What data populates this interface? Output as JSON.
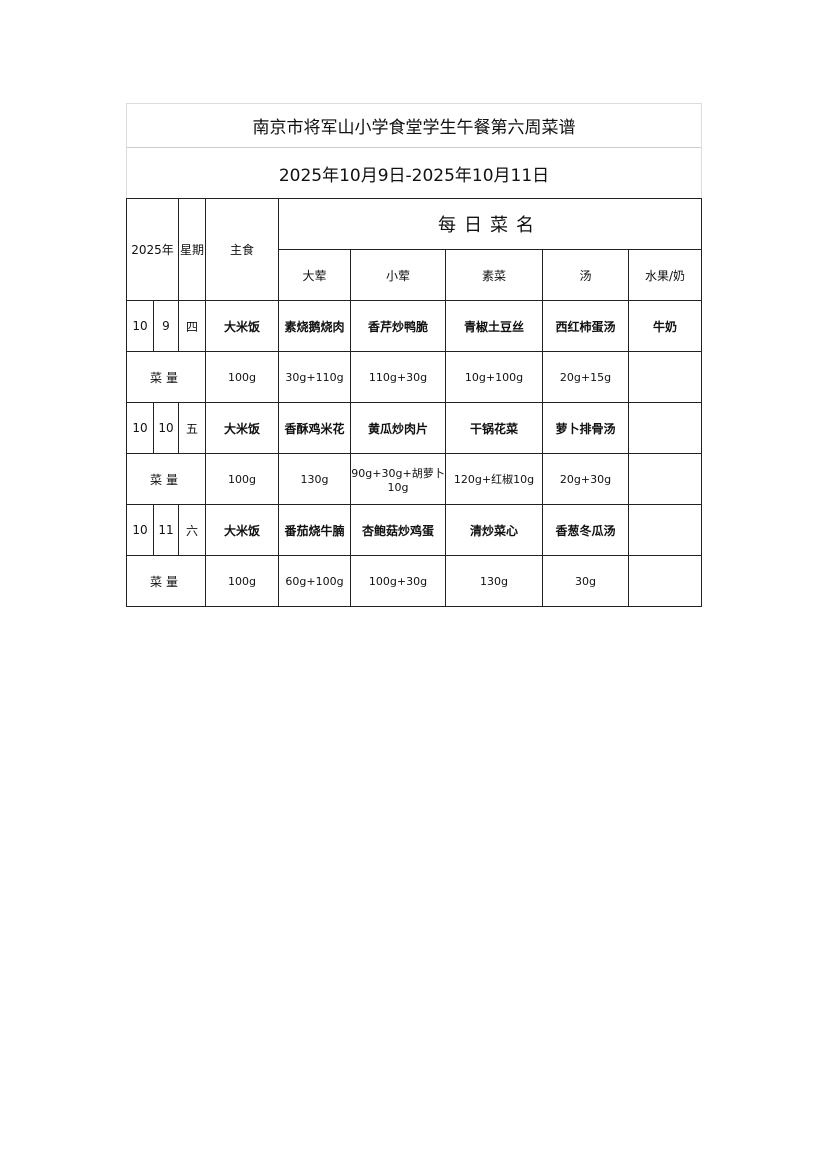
{
  "title": "南京市将军山小学食堂学生午餐第六周菜谱",
  "date_range": "2025年10月9日-2025年10月11日",
  "headers": {
    "year": "2025年",
    "weekday": "星期",
    "staple": "主食",
    "daily_dishes": "每日菜名",
    "main": "大荤",
    "minor": "小荤",
    "veg": "素菜",
    "soup": "汤",
    "fruit": "水果/奶"
  },
  "qty_label": "菜量",
  "days": [
    {
      "month": "10",
      "day": "9",
      "weekday": "四",
      "staple": "大米饭",
      "main": "素烧鹅烧肉",
      "minor": "香芹炒鸭脆",
      "veg": "青椒土豆丝",
      "soup": "西红柿蛋汤",
      "fruit": "牛奶",
      "q": {
        "staple": "100g",
        "main": "30g+110g",
        "minor": "110g+30g",
        "veg": "10g+100g",
        "soup": "20g+15g",
        "fruit": ""
      }
    },
    {
      "month": "10",
      "day": "10",
      "weekday": "五",
      "staple": "大米饭",
      "main": "香酥鸡米花",
      "minor": "黄瓜炒肉片",
      "veg": "干锅花菜",
      "soup": "萝卜排骨汤",
      "fruit": "",
      "q": {
        "staple": "100g",
        "main": "130g",
        "minor": "90g+30g+胡萝卜10g",
        "veg": "120g+红椒10g",
        "soup": "20g+30g",
        "fruit": ""
      }
    },
    {
      "month": "10",
      "day": "11",
      "weekday": "六",
      "staple": "大米饭",
      "main": "番茄烧牛腩",
      "minor": "杏鲍菇炒鸡蛋",
      "veg": "清炒菜心",
      "soup": "香葱冬瓜汤",
      "fruit": "",
      "q": {
        "staple": "100g",
        "main": "60g+100g",
        "minor": "100g+30g",
        "veg": "130g",
        "soup": "30g",
        "fruit": ""
      }
    }
  ]
}
